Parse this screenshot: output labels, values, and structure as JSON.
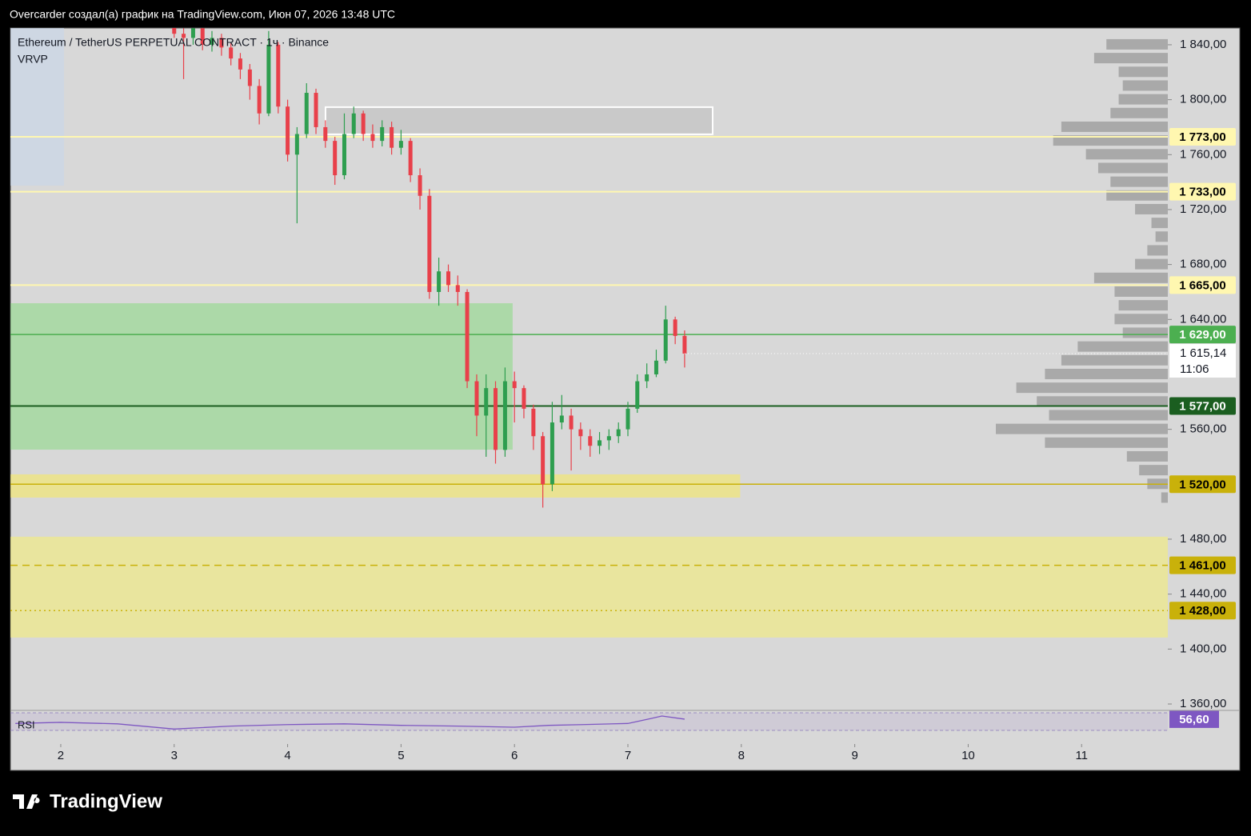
{
  "header": "Overcarder создал(а) график на TradingView.com, Июн 07, 2026 13:48 UTC",
  "brand": "TradingView",
  "chart_data": {
    "type": "candlestick",
    "title": "Ethereum / TetherUS PERPETUAL CONTRACT · 1ч · Binance",
    "indicator": "VRVP",
    "up_color": "#2e9e4f",
    "down_color": "#e8404a",
    "xlim": [
      1.556,
      11.76
    ],
    "xticks": [
      2,
      3,
      4,
      5,
      6,
      7,
      8,
      9,
      10,
      11
    ],
    "ylim": [
      1356.5,
      1852.2
    ],
    "yticks": [
      {
        "value": 1840,
        "label": "1 840,00"
      },
      {
        "value": 1800,
        "label": "1 800,00"
      },
      {
        "value": 1760,
        "label": "1 760,00"
      },
      {
        "value": 1720,
        "label": "1 720,00"
      },
      {
        "value": 1680,
        "label": "1 680,00"
      },
      {
        "value": 1640,
        "label": "1 640,00"
      },
      {
        "value": 1560,
        "label": "1 560,00"
      },
      {
        "value": 1480,
        "label": "1 480,00"
      },
      {
        "value": 1440,
        "label": "1 440,00"
      },
      {
        "value": 1400,
        "label": "1 400,00"
      },
      {
        "value": 1360,
        "label": "1 360,00"
      }
    ],
    "x": [
      3,
      3.083,
      3.167,
      3.25,
      3.333,
      3.417,
      3.5,
      3.583,
      3.667,
      3.75,
      3.833,
      3.917,
      4,
      4.083,
      4.167,
      4.25,
      4.333,
      4.417,
      4.5,
      4.583,
      4.667,
      4.75,
      4.833,
      4.917,
      5,
      5.083,
      5.167,
      5.25,
      5.333,
      5.417,
      5.5,
      5.583,
      5.667,
      5.75,
      5.833,
      5.917,
      6,
      6.083,
      6.167,
      6.25,
      6.333,
      6.417,
      6.5,
      6.583,
      6.667,
      6.75,
      6.833,
      6.917,
      7,
      7.083,
      7.167,
      7.25,
      7.333,
      7.417,
      7.5
    ],
    "open": [
      1855,
      1848,
      1845,
      1852,
      1840,
      1845,
      1838,
      1830,
      1822,
      1810,
      1790,
      1840,
      1795,
      1760,
      1775,
      1805,
      1780,
      1770,
      1745,
      1775,
      1790,
      1775,
      1770,
      1780,
      1765,
      1770,
      1745,
      1730,
      1660,
      1675,
      1665,
      1660,
      1595,
      1570,
      1590,
      1545,
      1595,
      1590,
      1575,
      1555,
      1520,
      1565,
      1570,
      1560,
      1555,
      1548,
      1552,
      1555,
      1560,
      1575,
      1595,
      1600,
      1610,
      1640,
      1628
    ],
    "high": [
      1860,
      1852,
      1858,
      1856,
      1850,
      1848,
      1842,
      1834,
      1826,
      1815,
      1850,
      1842,
      1800,
      1780,
      1812,
      1808,
      1785,
      1773,
      1790,
      1795,
      1792,
      1782,
      1785,
      1784,
      1778,
      1772,
      1750,
      1735,
      1685,
      1680,
      1672,
      1662,
      1600,
      1600,
      1595,
      1605,
      1602,
      1592,
      1578,
      1558,
      1580,
      1585,
      1575,
      1565,
      1560,
      1558,
      1560,
      1565,
      1580,
      1600,
      1608,
      1618,
      1650,
      1642,
      1632
    ],
    "low": [
      1845,
      1815,
      1840,
      1836,
      1835,
      1832,
      1825,
      1815,
      1800,
      1782,
      1788,
      1790,
      1755,
      1710,
      1772,
      1775,
      1765,
      1738,
      1742,
      1772,
      1770,
      1765,
      1766,
      1760,
      1760,
      1740,
      1720,
      1655,
      1650,
      1660,
      1650,
      1590,
      1555,
      1540,
      1535,
      1540,
      1565,
      1568,
      1545,
      1503,
      1515,
      1560,
      1530,
      1545,
      1540,
      1542,
      1545,
      1550,
      1555,
      1572,
      1590,
      1598,
      1608,
      1622,
      1605
    ],
    "close": [
      1848,
      1845,
      1852,
      1840,
      1845,
      1838,
      1830,
      1822,
      1810,
      1790,
      1840,
      1795,
      1760,
      1775,
      1805,
      1780,
      1770,
      1745,
      1775,
      1790,
      1775,
      1770,
      1780,
      1765,
      1770,
      1745,
      1730,
      1660,
      1675,
      1665,
      1660,
      1595,
      1570,
      1590,
      1545,
      1595,
      1590,
      1575,
      1555,
      1520,
      1565,
      1570,
      1560,
      1555,
      1548,
      1552,
      1555,
      1560,
      1575,
      1595,
      1600,
      1610,
      1640,
      1628,
      1615.14
    ],
    "zones": [
      {
        "x": [
          1.556,
          5.984
        ],
        "y": [
          1545.2,
          1651.8
        ],
        "color": "rgba(120,220,110,0.45)"
      },
      {
        "x": [
          1.556,
          7.99
        ],
        "y": [
          1510.3,
          1527.2
        ],
        "color": "rgba(250,235,90,0.55)"
      },
      {
        "x": [
          1.556,
          11.76
        ],
        "y": [
          1408.4,
          1481.8
        ],
        "color": "rgba(245,238,120,0.6)"
      },
      {
        "x": [
          4.334,
          7.747
        ],
        "y": [
          1774.8,
          1794.6
        ],
        "color": "rgba(200,200,200,0.9)"
      }
    ],
    "levels": [
      {
        "value": 1773,
        "label": "1 773,00",
        "color": "#fff7b0",
        "text_color": "#000000",
        "style": "solid"
      },
      {
        "value": 1733,
        "label": "1 733,00",
        "color": "#fff7b0",
        "text_color": "#000000",
        "style": "solid"
      },
      {
        "value": 1665,
        "label": "1 665,00",
        "color": "#fff7b0",
        "text_color": "#000000",
        "style": "solid"
      },
      {
        "value": 1629,
        "label": "1 629,00",
        "color": "#4caf50",
        "text_color": "#ffffff",
        "style": "solid"
      },
      {
        "value": 1577,
        "label": "1 577,00",
        "color": "#1b5e20",
        "text_color": "#ffffff",
        "style": "solid"
      },
      {
        "value": 1520,
        "label": "1 520,00",
        "color": "#c9b10a",
        "text_color": "#000000",
        "style": "solid"
      },
      {
        "value": 1461,
        "label": "1 461,00",
        "color": "#c9b10a",
        "text_color": "#000000",
        "style": "dashed"
      },
      {
        "value": 1428,
        "label": "1 428,00",
        "color": "#c9b10a",
        "text_color": "#000000",
        "style": "dotted"
      }
    ],
    "last": {
      "value": 1615.14,
      "label": "1 615,14",
      "countdown": "11:06"
    },
    "volume_profile": {
      "color": "#9e9e9e",
      "prices": [
        1840,
        1830,
        1820,
        1810,
        1800,
        1790,
        1780,
        1770,
        1760,
        1750,
        1740,
        1730,
        1720,
        1710,
        1700,
        1690,
        1680,
        1670,
        1660,
        1650,
        1640,
        1630,
        1620,
        1610,
        1600,
        1590,
        1580,
        1570,
        1560,
        1550,
        1540,
        1530,
        1520,
        1510
      ],
      "volumes": [
        75,
        90,
        60,
        55,
        60,
        70,
        130,
        140,
        100,
        85,
        70,
        75,
        40,
        20,
        15,
        25,
        40,
        90,
        65,
        60,
        65,
        55,
        110,
        130,
        150,
        185,
        160,
        145,
        210,
        150,
        50,
        35,
        25,
        8
      ]
    },
    "rsi": {
      "label": "RSI",
      "color": "#7e57c2",
      "ylim": [
        20,
        80
      ],
      "x": [
        1.6,
        2,
        2.5,
        3,
        3.5,
        4,
        4.5,
        5,
        5.5,
        6,
        6.3,
        6.6,
        7,
        7.2,
        7.3,
        7.5
      ],
      "values": [
        45,
        48,
        44,
        30,
        38,
        42,
        44,
        40,
        38,
        35,
        40,
        42,
        45,
        58,
        65,
        56.6
      ],
      "value": 56.6,
      "value_label": "56,60"
    }
  }
}
